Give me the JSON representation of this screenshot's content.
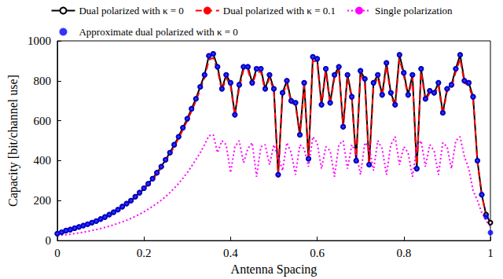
{
  "chart_data": {
    "type": "line",
    "x_label": "Antenna Spacing",
    "y_label": "Capacity [bit/channel use]",
    "x": [
      0,
      0.01,
      0.02,
      0.03,
      0.04,
      0.05,
      0.06,
      0.07,
      0.08,
      0.09,
      0.1,
      0.11,
      0.12,
      0.13,
      0.14,
      0.15,
      0.16,
      0.17,
      0.18,
      0.19,
      0.2,
      0.21,
      0.22,
      0.23,
      0.24,
      0.25,
      0.26,
      0.27,
      0.28,
      0.29,
      0.3,
      0.31,
      0.32,
      0.33,
      0.34,
      0.35,
      0.36,
      0.37,
      0.38,
      0.39,
      0.4,
      0.41,
      0.42,
      0.43,
      0.44,
      0.45,
      0.46,
      0.47,
      0.48,
      0.49,
      0.5,
      0.51,
      0.52,
      0.53,
      0.54,
      0.55,
      0.56,
      0.57,
      0.58,
      0.59,
      0.6,
      0.61,
      0.62,
      0.63,
      0.64,
      0.65,
      0.66,
      0.67,
      0.68,
      0.69,
      0.7,
      0.71,
      0.72,
      0.73,
      0.74,
      0.75,
      0.76,
      0.77,
      0.78,
      0.79,
      0.8,
      0.81,
      0.82,
      0.83,
      0.84,
      0.85,
      0.86,
      0.87,
      0.88,
      0.89,
      0.9,
      0.91,
      0.92,
      0.93,
      0.94,
      0.95,
      0.96,
      0.97,
      0.98,
      0.99,
      1
    ],
    "series": [
      {
        "name": "Dual polarized with κ = 0",
        "color": "#000000",
        "type": "line",
        "line_style": "solid",
        "marker": "emptyCircle",
        "values": [
          35,
          42,
          50,
          55,
          62,
          68,
          75,
          82,
          90,
          98,
          108,
          118,
          130,
          142,
          155,
          170,
          185,
          200,
          220,
          240,
          262,
          285,
          310,
          340,
          370,
          405,
          440,
          480,
          520,
          565,
          610,
          660,
          710,
          770,
          830,
          925,
          935,
          870,
          760,
          830,
          790,
          630,
          780,
          870,
          870,
          790,
          860,
          860,
          760,
          830,
          760,
          330,
          740,
          800,
          700,
          690,
          530,
          790,
          410,
          920,
          910,
          680,
          860,
          690,
          830,
          870,
          570,
          830,
          720,
          400,
          850,
          810,
          380,
          790,
          830,
          730,
          890,
          740,
          680,
          930,
          840,
          730,
          830,
          360,
          860,
          710,
          750,
          740,
          790,
          640,
          760,
          780,
          860,
          930,
          800,
          790,
          720,
          400,
          230,
          130,
          90
        ]
      },
      {
        "name": "Dual polarized with κ = 0.1",
        "color": "#ff0000",
        "type": "line",
        "line_style": "dashed",
        "marker": "none",
        "values": [
          34,
          41,
          49,
          54,
          61,
          67,
          74,
          81,
          89,
          97,
          106,
          116,
          128,
          140,
          153,
          167,
          182,
          197,
          216,
          236,
          258,
          281,
          305,
          334,
          364,
          398,
          432,
          471,
          511,
          555,
          600,
          648,
          698,
          757,
          815,
          905,
          915,
          855,
          750,
          815,
          775,
          625,
          765,
          855,
          855,
          780,
          845,
          845,
          750,
          815,
          750,
          330,
          730,
          785,
          690,
          680,
          525,
          775,
          405,
          900,
          895,
          670,
          845,
          680,
          815,
          855,
          565,
          815,
          710,
          395,
          835,
          795,
          375,
          775,
          815,
          720,
          875,
          730,
          670,
          910,
          825,
          720,
          815,
          355,
          845,
          700,
          740,
          730,
          775,
          630,
          750,
          765,
          845,
          910,
          790,
          775,
          710,
          395,
          225,
          128,
          88
        ]
      },
      {
        "name": "Single polarization",
        "color": "#ff00ff",
        "type": "line",
        "line_style": "dotted",
        "marker": "none",
        "values": [
          25,
          27,
          29,
          32,
          35,
          38,
          42,
          46,
          50,
          55,
          60,
          66,
          72,
          79,
          86,
          94,
          102,
          111,
          121,
          132,
          144,
          157,
          171,
          186,
          202,
          220,
          240,
          262,
          286,
          312,
          340,
          372,
          405,
          440,
          480,
          525,
          530,
          440,
          500,
          480,
          340,
          470,
          500,
          390,
          460,
          490,
          320,
          470,
          480,
          380,
          480,
          420,
          350,
          490,
          440,
          330,
          480,
          460,
          370,
          520,
          490,
          360,
          470,
          450,
          320,
          480,
          500,
          360,
          480,
          440,
          330,
          490,
          470,
          350,
          500,
          460,
          330,
          480,
          520,
          380,
          470,
          440,
          320,
          470,
          500,
          370,
          480,
          450,
          330,
          490,
          470,
          360,
          500,
          520,
          420,
          360,
          250,
          200,
          140,
          100,
          70
        ]
      },
      {
        "name": "Approximate dual polarized with κ = 0",
        "color": "#0000ff",
        "type": "scatter",
        "marker": "circle",
        "values": [
          35,
          42,
          50,
          55,
          62,
          68,
          75,
          82,
          90,
          98,
          108,
          118,
          130,
          142,
          155,
          170,
          185,
          200,
          220,
          240,
          262,
          285,
          310,
          340,
          370,
          405,
          440,
          480,
          520,
          565,
          610,
          660,
          710,
          770,
          830,
          925,
          935,
          870,
          760,
          830,
          790,
          630,
          780,
          870,
          870,
          790,
          860,
          860,
          760,
          830,
          760,
          330,
          740,
          800,
          700,
          690,
          530,
          790,
          410,
          920,
          910,
          680,
          860,
          690,
          830,
          870,
          570,
          830,
          720,
          400,
          850,
          810,
          380,
          790,
          830,
          730,
          890,
          740,
          680,
          930,
          840,
          730,
          830,
          360,
          860,
          710,
          750,
          740,
          790,
          640,
          760,
          780,
          860,
          930,
          800,
          790,
          720,
          400,
          230,
          120,
          40
        ]
      }
    ],
    "xlim": [
      0,
      1
    ],
    "xticks": [
      0,
      0.2,
      0.4,
      0.6,
      0.8,
      1
    ],
    "ylim": [
      0,
      1000
    ],
    "yticks": [
      0,
      200,
      400,
      600,
      800,
      1000
    ],
    "grid": false,
    "legend": "top"
  }
}
